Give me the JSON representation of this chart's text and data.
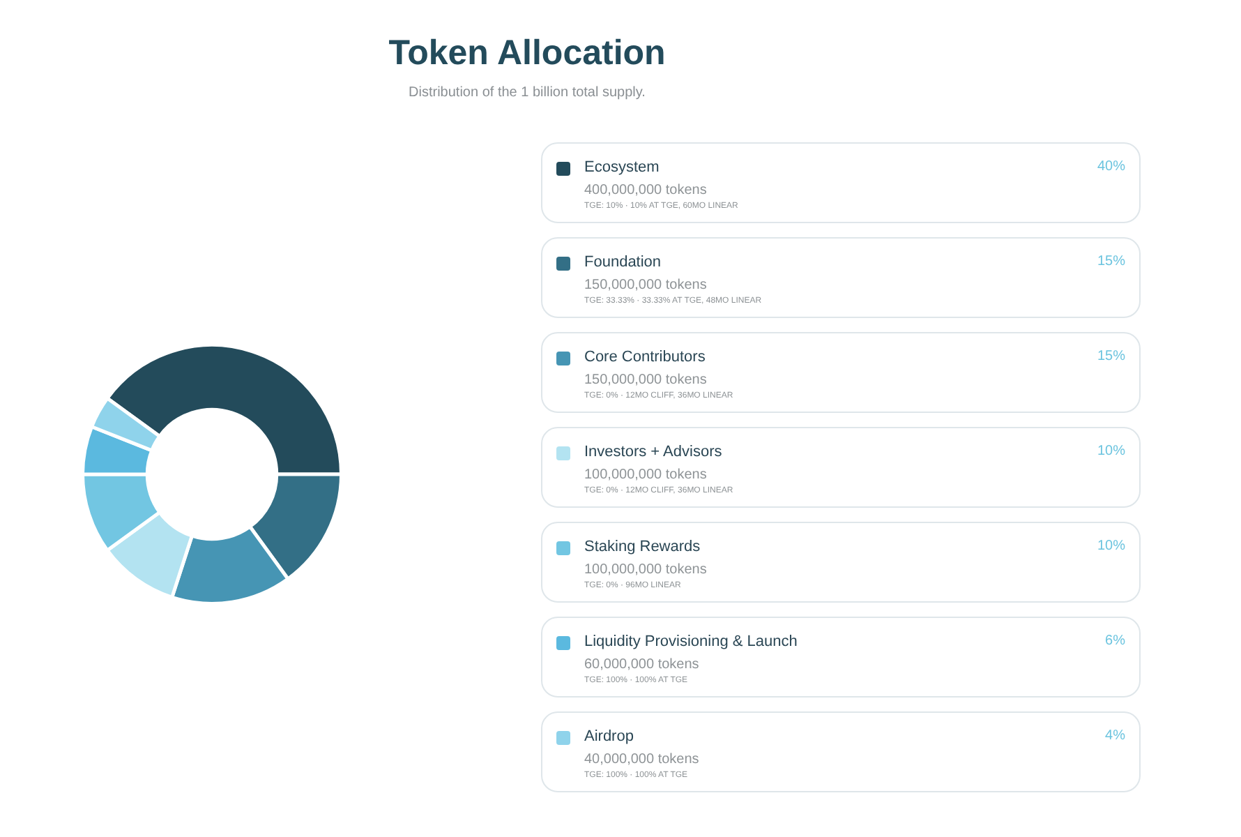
{
  "chart_data": {
    "type": "donut",
    "title": "Token Allocation",
    "subtitle": "Distribution of the 1 billion total supply.",
    "categories": [
      "Ecosystem",
      "Foundation",
      "Core Contributors",
      "Investors + Advisors",
      "Staking Rewards",
      "Liquidity Provisioning & Launch",
      "Airdrop"
    ],
    "values": [
      40,
      15,
      15,
      10,
      10,
      6,
      4
    ],
    "colors": [
      "#234b5b",
      "#336f86",
      "#4695b4",
      "#b3e3f1",
      "#72c6e2",
      "#5bb9df",
      "#8fd3eb"
    ],
    "value_labels": [
      "40%",
      "15%",
      "15%",
      "10%",
      "10%",
      "6%",
      "4%"
    ],
    "legend": "right",
    "annotations": [
      "400,000,000 tokens",
      "TGE: 10% · 10% AT TGE, 60MO LINEAR",
      "150,000,000 tokens",
      "TGE: 33.33% · 33.33% AT TGE, 48MO LINEAR",
      "150,000,000 tokens",
      "TGE: 0% · 12MO CLIFF, 36MO LINEAR",
      "100,000,000 tokens",
      "TGE: 0% · 12MO CLIFF, 36MO LINEAR",
      "100,000,000 tokens",
      "TGE: 0% · 96MO LINEAR",
      "60,000,000 tokens",
      "TGE: 100% · 100% AT TGE",
      "40,000,000 tokens",
      "TGE: 100% · 100% AT TGE"
    ]
  }
}
